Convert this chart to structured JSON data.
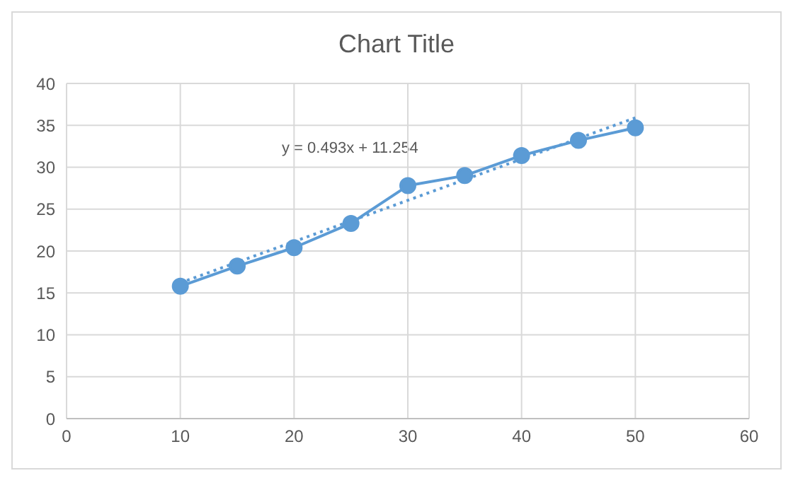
{
  "chart_data": {
    "type": "scatter",
    "title": "Chart Title",
    "x": [
      10,
      15,
      20,
      25,
      30,
      35,
      40,
      45,
      50
    ],
    "series": [
      {
        "type": "line",
        "color": "#5b9bd5",
        "marker": "circle",
        "line_style": "solid",
        "values": [
          15.8,
          18.2,
          20.4,
          23.3,
          27.8,
          29,
          31.4,
          33.2,
          34.7
        ]
      },
      {
        "type": "line",
        "color": "#5b9bd5",
        "marker": "none",
        "line_style": "dotted",
        "x": [
          10,
          50
        ],
        "values": [
          16.2,
          35.9
        ]
      }
    ],
    "annotations": [
      "y = 0.493x + 11.254"
    ],
    "xlim": [
      0,
      60
    ],
    "xticks": [
      0,
      10,
      20,
      30,
      40,
      50,
      60
    ],
    "ylim": [
      0,
      40
    ],
    "yticks": [
      0,
      5,
      10,
      15,
      20,
      25,
      30,
      35,
      40
    ],
    "grid": true,
    "legend": false
  }
}
